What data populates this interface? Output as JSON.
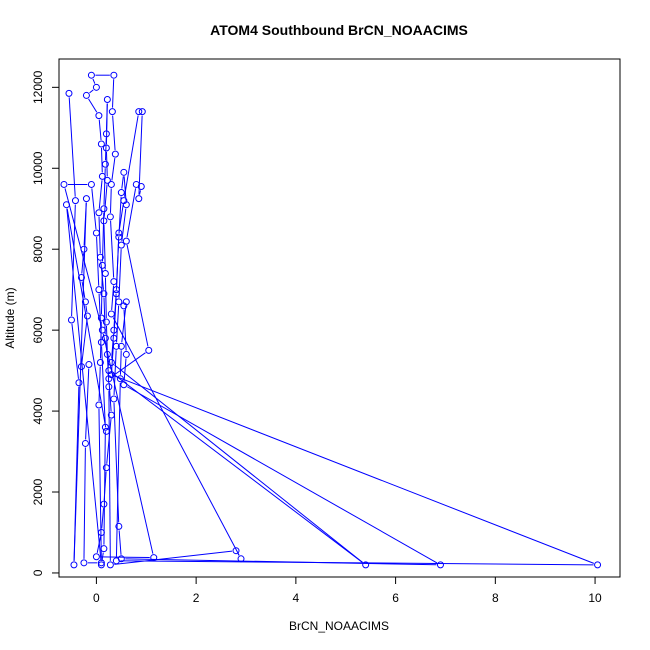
{
  "chart_data": {
    "type": "line",
    "title": "ATOM4 Southbound BrCN_NOAACIMS",
    "xlabel": "BrCN_NOAACIMS",
    "ylabel": "Altitude (m)",
    "xlim": [
      -0.75,
      10.5
    ],
    "ylim": [
      -100,
      12700
    ],
    "x_ticks": [
      0,
      2,
      4,
      6,
      8,
      10
    ],
    "x_tick_labels": [
      "0",
      "2",
      "4",
      "6",
      "8",
      "10"
    ],
    "y_ticks": [
      0,
      2000,
      4000,
      6000,
      8000,
      10000,
      12000
    ],
    "y_tick_labels": [
      "0",
      "2000",
      "4000",
      "6000",
      "8000",
      "10000",
      "12000"
    ],
    "grid": false,
    "series": [
      {
        "color": "#0000ff",
        "marker": "open-circle",
        "points": [
          [
            -0.55,
            11850
          ],
          [
            -0.42,
            9200
          ],
          [
            -0.5,
            6250
          ],
          [
            -0.35,
            4700
          ],
          [
            -0.45,
            200
          ],
          [
            -0.2,
            9250
          ],
          [
            -0.25,
            8000
          ],
          [
            -0.3,
            7300
          ],
          [
            -0.22,
            6700
          ],
          [
            -0.18,
            6350
          ],
          [
            -0.3,
            5100
          ],
          [
            -0.15,
            5150
          ],
          [
            -0.22,
            3200
          ],
          [
            -0.25,
            250
          ],
          [
            0.1,
            250
          ],
          [
            0.05,
            4150
          ],
          [
            0.08,
            5200
          ],
          [
            0.1,
            6300
          ],
          [
            0.12,
            7600
          ],
          [
            0.15,
            9000
          ],
          [
            0.18,
            10100
          ],
          [
            0.2,
            10850
          ],
          [
            0.22,
            11700
          ],
          [
            0.2,
            10500
          ],
          [
            0.22,
            9700
          ],
          [
            0.15,
            8700
          ],
          [
            0.18,
            7400
          ],
          [
            0.2,
            6200
          ],
          [
            0.22,
            5400
          ],
          [
            0.25,
            4600
          ],
          [
            0.28,
            200
          ],
          [
            2.8,
            550
          ],
          [
            2.9,
            350
          ],
          [
            0.3,
            6400
          ],
          [
            0.35,
            7200
          ],
          [
            0.28,
            8800
          ],
          [
            0.3,
            9600
          ],
          [
            0.38,
            10350
          ],
          [
            0.32,
            11400
          ],
          [
            0.35,
            12300
          ],
          [
            -0.1,
            12300
          ],
          [
            0.0,
            12000
          ],
          [
            -0.2,
            11800
          ],
          [
            0.05,
            11300
          ],
          [
            0.1,
            10600
          ],
          [
            0.12,
            9800
          ],
          [
            0.05,
            8900
          ],
          [
            0.08,
            7800
          ],
          [
            0.15,
            6900
          ],
          [
            0.18,
            5800
          ],
          [
            0.25,
            5000
          ],
          [
            5.4,
            200
          ],
          [
            0.3,
            5200
          ],
          [
            0.35,
            6000
          ],
          [
            0.4,
            7000
          ],
          [
            0.45,
            8300
          ],
          [
            0.5,
            9400
          ],
          [
            0.55,
            9900
          ],
          [
            0.6,
            9100
          ],
          [
            0.5,
            8100
          ],
          [
            0.45,
            6700
          ],
          [
            0.4,
            5600
          ],
          [
            0.35,
            4300
          ],
          [
            0.45,
            1150
          ],
          [
            0.5,
            350
          ],
          [
            6.9,
            200
          ],
          [
            0.55,
            4650
          ],
          [
            0.6,
            5400
          ],
          [
            0.55,
            6600
          ],
          [
            0.6,
            6700
          ],
          [
            0.5,
            5600
          ],
          [
            0.48,
            4800
          ],
          [
            0.4,
            300
          ],
          [
            10.05,
            200
          ],
          [
            0.3,
            4900
          ],
          [
            0.35,
            5800
          ],
          [
            0.4,
            6900
          ],
          [
            0.45,
            8400
          ],
          [
            0.55,
            9200
          ],
          [
            0.85,
            11400
          ],
          [
            0.92,
            11400
          ],
          [
            0.85,
            9250
          ],
          [
            0.9,
            9550
          ],
          [
            0.8,
            9600
          ],
          [
            0.6,
            8200
          ],
          [
            1.05,
            5500
          ],
          [
            0.25,
            4800
          ],
          [
            0.3,
            3900
          ],
          [
            0.2,
            2600
          ],
          [
            0.15,
            1700
          ],
          [
            0.1,
            1000
          ],
          [
            0.0,
            400
          ],
          [
            1.15,
            380
          ],
          [
            0.12,
            6000
          ],
          [
            -0.65,
            9600
          ],
          [
            -0.1,
            9600
          ],
          [
            0.0,
            8400
          ],
          [
            0.05,
            7000
          ],
          [
            0.1,
            5700
          ],
          [
            0.18,
            3600
          ],
          [
            0.15,
            600
          ],
          [
            0.1,
            200
          ],
          [
            -0.6,
            9100
          ],
          [
            0.2,
            3500
          ]
        ]
      }
    ]
  }
}
